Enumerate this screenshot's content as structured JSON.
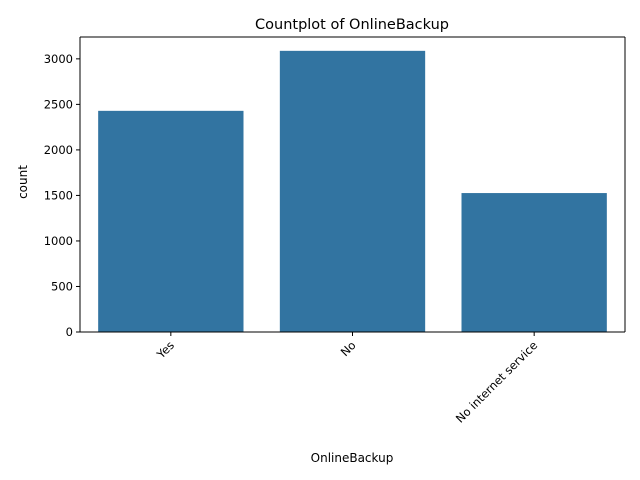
{
  "chart_data": {
    "type": "bar",
    "title": "Countplot of OnlineBackup",
    "xlabel": "OnlineBackup",
    "ylabel": "count",
    "categories": [
      "Yes",
      "No",
      "No internet service"
    ],
    "values": [
      2429,
      3088,
      1526
    ],
    "ylim": [
      0,
      3240
    ],
    "yticks": [
      0,
      500,
      1000,
      1500,
      2000,
      2500,
      3000
    ],
    "bar_color": "#3274a1",
    "grid": false,
    "xtick_rotation_deg": 45
  }
}
